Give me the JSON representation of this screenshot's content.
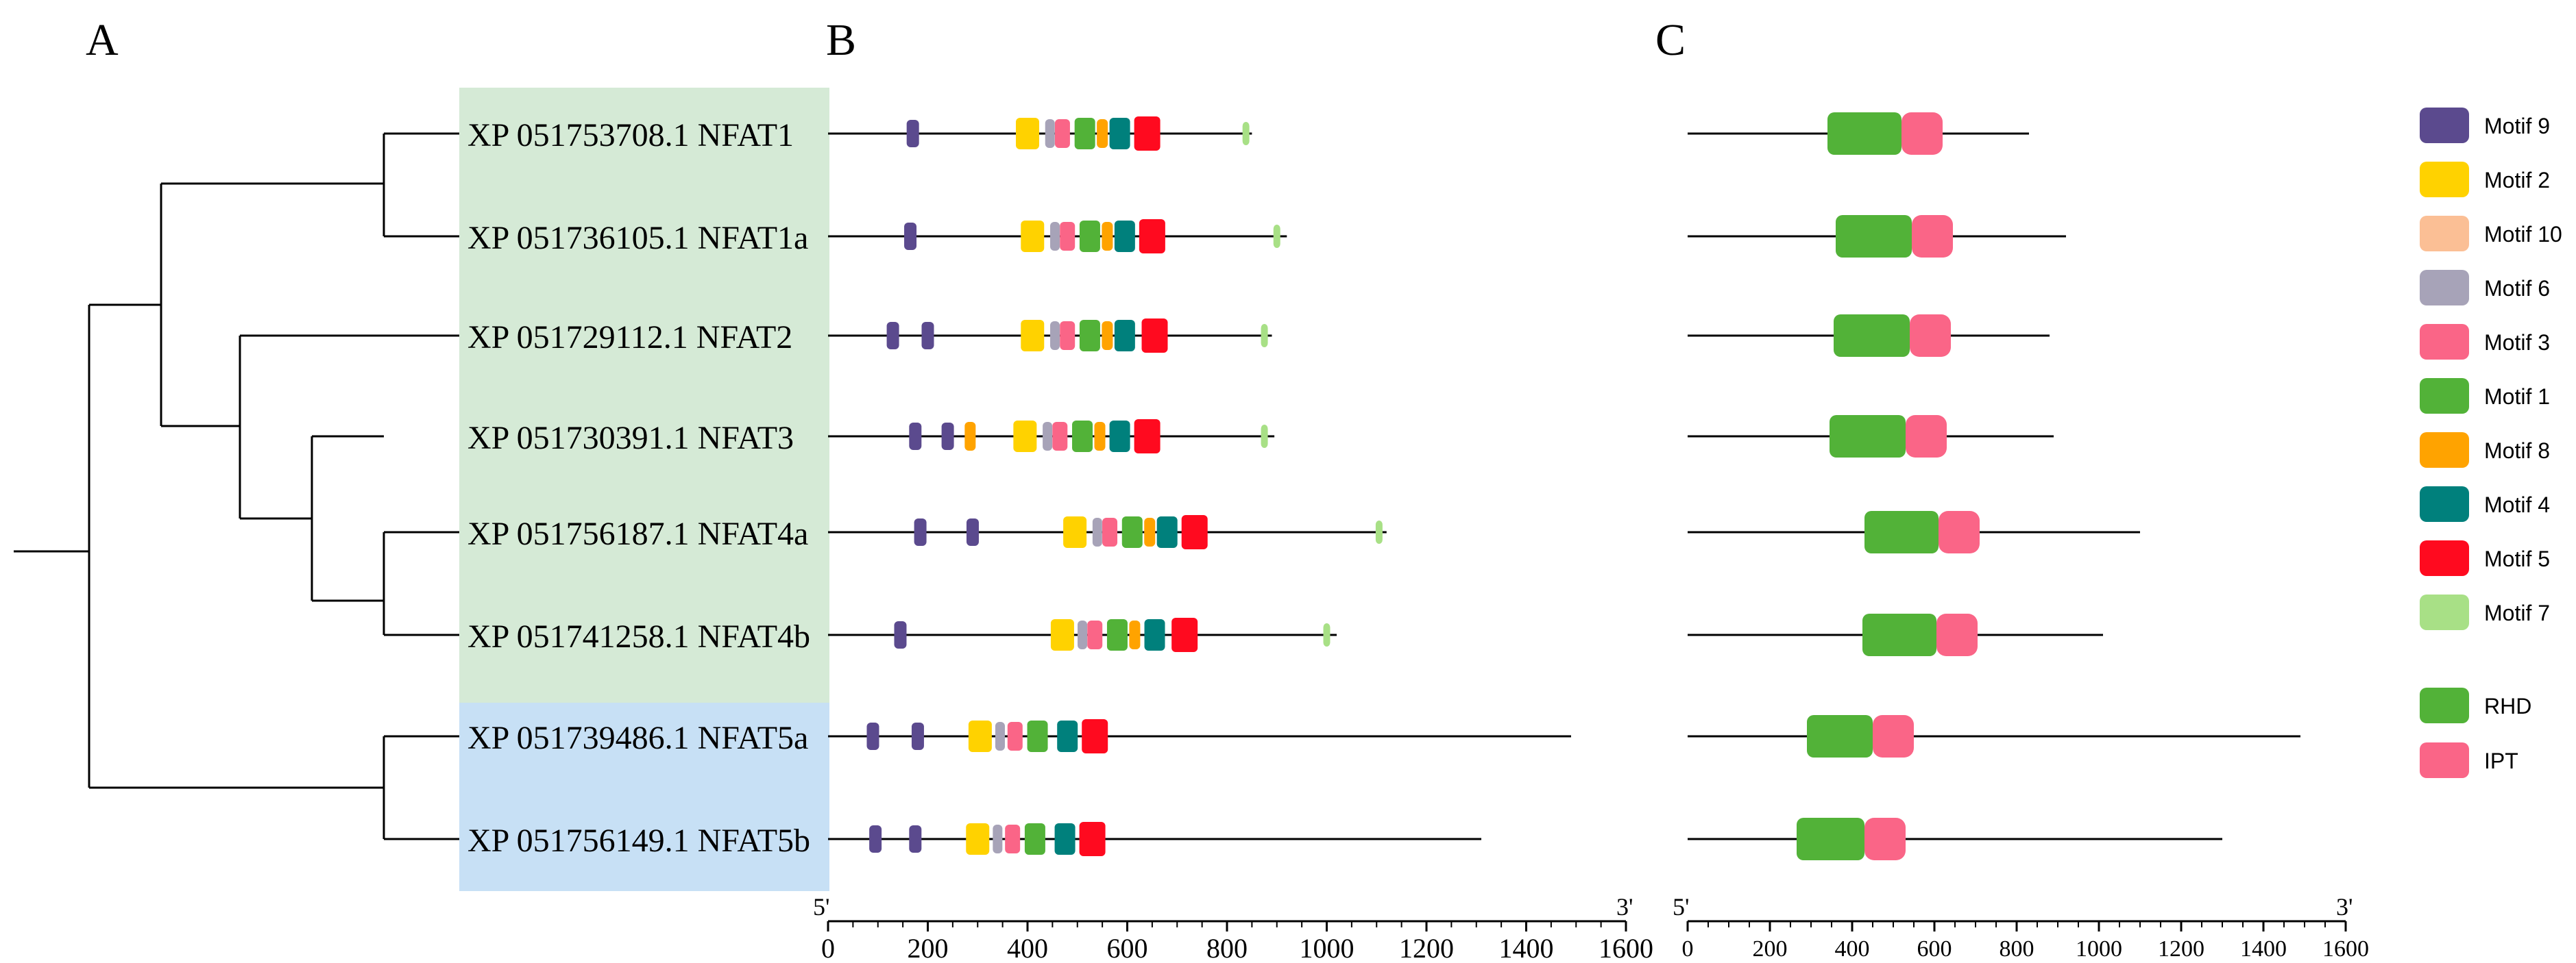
{
  "panels": {
    "a": "A",
    "b": "B",
    "c": "C"
  },
  "proteins": [
    {
      "label": "XP 051753708.1 NFAT1",
      "group": "green",
      "len": 850,
      "motifs": [
        [
          170,
          "m9"
        ],
        [
          400,
          "m2"
        ],
        [
          445,
          "m6"
        ],
        [
          470,
          "m3"
        ],
        [
          515,
          "m1"
        ],
        [
          550,
          "m8"
        ],
        [
          585,
          "m4"
        ],
        [
          640,
          "m5"
        ],
        [
          838,
          "m7"
        ]
      ]
    },
    {
      "label": "XP 051736105.1 NFAT1a",
      "group": "green",
      "len": 920,
      "motifs": [
        [
          165,
          "m9"
        ],
        [
          410,
          "m2"
        ],
        [
          455,
          "m6"
        ],
        [
          480,
          "m3"
        ],
        [
          525,
          "m1"
        ],
        [
          560,
          "m8"
        ],
        [
          595,
          "m4"
        ],
        [
          650,
          "m5"
        ],
        [
          900,
          "m7"
        ]
      ]
    },
    {
      "label": "XP 051729112.1 NFAT2",
      "group": "green",
      "len": 890,
      "motifs": [
        [
          130,
          "m9"
        ],
        [
          200,
          "m9"
        ],
        [
          410,
          "m2"
        ],
        [
          455,
          "m6"
        ],
        [
          480,
          "m3"
        ],
        [
          525,
          "m1"
        ],
        [
          560,
          "m8"
        ],
        [
          595,
          "m4"
        ],
        [
          655,
          "m5"
        ],
        [
          875,
          "m7"
        ]
      ]
    },
    {
      "label": "XP 051730391.1 NFAT3",
      "group": "green",
      "len": 895,
      "motifs": [
        [
          175,
          "m9"
        ],
        [
          240,
          "m9"
        ],
        [
          285,
          "m8"
        ],
        [
          395,
          "m2"
        ],
        [
          440,
          "m6"
        ],
        [
          465,
          "m3"
        ],
        [
          510,
          "m1"
        ],
        [
          545,
          "m8"
        ],
        [
          585,
          "m4"
        ],
        [
          640,
          "m5"
        ],
        [
          875,
          "m7"
        ]
      ]
    },
    {
      "label": "XP 051756187.1 NFAT4a",
      "group": "green",
      "len": 1120,
      "motifs": [
        [
          185,
          "m9"
        ],
        [
          290,
          "m9"
        ],
        [
          495,
          "m2"
        ],
        [
          540,
          "m6"
        ],
        [
          565,
          "m3"
        ],
        [
          610,
          "m1"
        ],
        [
          645,
          "m8"
        ],
        [
          680,
          "m4"
        ],
        [
          735,
          "m5"
        ],
        [
          1105,
          "m7"
        ]
      ]
    },
    {
      "label": "XP 051741258.1 NFAT4b",
      "group": "green",
      "len": 1020,
      "motifs": [
        [
          145,
          "m9"
        ],
        [
          470,
          "m2"
        ],
        [
          510,
          "m6"
        ],
        [
          535,
          "m3"
        ],
        [
          580,
          "m1"
        ],
        [
          615,
          "m8"
        ],
        [
          655,
          "m4"
        ],
        [
          715,
          "m5"
        ],
        [
          1000,
          "m7"
        ]
      ]
    },
    {
      "label": "XP 051739486.1  NFAT5a",
      "group": "blue",
      "len": 1490,
      "motifs": [
        [
          90,
          "m9"
        ],
        [
          180,
          "m9"
        ],
        [
          305,
          "m2"
        ],
        [
          345,
          "m6"
        ],
        [
          375,
          "m3"
        ],
        [
          420,
          "m1"
        ],
        [
          480,
          "m4"
        ],
        [
          535,
          "m5"
        ]
      ]
    },
    {
      "label": "XP 051756149.1 NFAT5b",
      "group": "blue",
      "len": 1310,
      "motifs": [
        [
          95,
          "m9"
        ],
        [
          175,
          "m9"
        ],
        [
          300,
          "m2"
        ],
        [
          340,
          "m6"
        ],
        [
          370,
          "m3"
        ],
        [
          415,
          "m1"
        ],
        [
          475,
          "m4"
        ],
        [
          530,
          "m5"
        ]
      ]
    }
  ],
  "domains_c": [
    {
      "len": 830,
      "rhd": [
        340,
        520
      ],
      "ipt": [
        520,
        620
      ]
    },
    {
      "len": 920,
      "rhd": [
        360,
        545
      ],
      "ipt": [
        545,
        645
      ]
    },
    {
      "len": 880,
      "rhd": [
        355,
        540
      ],
      "ipt": [
        540,
        640
      ]
    },
    {
      "len": 890,
      "rhd": [
        345,
        530
      ],
      "ipt": [
        530,
        630
      ]
    },
    {
      "len": 1100,
      "rhd": [
        430,
        610
      ],
      "ipt": [
        610,
        710
      ]
    },
    {
      "len": 1010,
      "rhd": [
        425,
        605
      ],
      "ipt": [
        605,
        705
      ]
    },
    {
      "len": 1490,
      "rhd": [
        290,
        450
      ],
      "ipt": [
        450,
        550
      ]
    },
    {
      "len": 1300,
      "rhd": [
        265,
        430
      ],
      "ipt": [
        430,
        530
      ]
    }
  ],
  "axis_b": {
    "min": 0,
    "max": 1600,
    "ticks": [
      "0",
      "200",
      "400",
      "600",
      "800",
      "1000",
      "1200",
      "1400",
      "1600"
    ],
    "five": "5'",
    "three": "3'"
  },
  "axis_c": {
    "min": 0,
    "max": 1600,
    "ticks": [
      "0",
      "200",
      "400",
      "600",
      "800",
      "1000",
      "1200",
      "1400",
      "1600"
    ],
    "five": "5'",
    "three": "3'"
  },
  "legend": {
    "motifs": [
      {
        "key": "m9",
        "label": "Motif 9",
        "color": "#5b4a8e"
      },
      {
        "key": "m2",
        "label": "Motif 2",
        "color": "#ffd200"
      },
      {
        "key": "m10",
        "label": "Motif 10",
        "color": "#fbbf95"
      },
      {
        "key": "m6",
        "label": "Motif 6",
        "color": "#a7a3b8"
      },
      {
        "key": "m3",
        "label": "Motif 3",
        "color": "#fa6587"
      },
      {
        "key": "m1",
        "label": "Motif 1",
        "color": "#52b238"
      },
      {
        "key": "m8",
        "label": "Motif 8",
        "color": "#ffa300"
      },
      {
        "key": "m4",
        "label": "Motif 4",
        "color": "#00807c"
      },
      {
        "key": "m5",
        "label": "Motif 5",
        "color": "#ff0a1f"
      },
      {
        "key": "m7",
        "label": "Motif 7",
        "color": "#a8e086"
      }
    ],
    "domains": [
      {
        "key": "rhd",
        "label": "RHD",
        "color": "#52b238"
      },
      {
        "key": "ipt",
        "label": "IPT",
        "color": "#fa6587"
      }
    ]
  }
}
